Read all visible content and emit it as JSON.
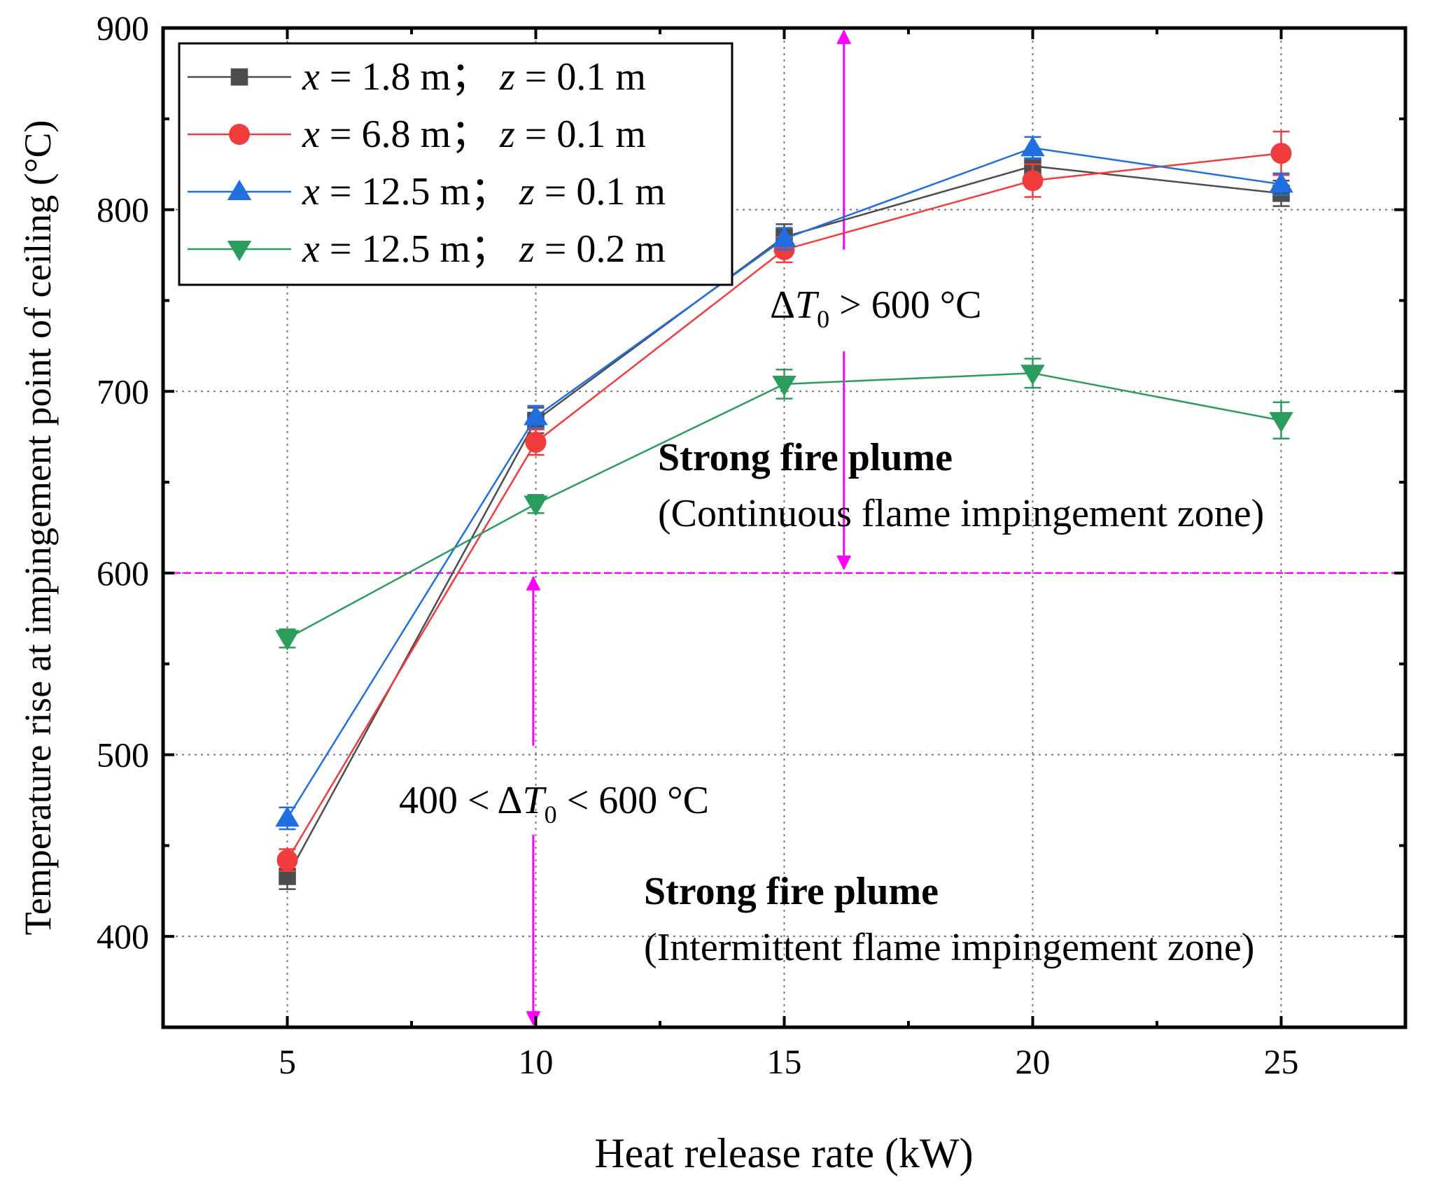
{
  "chart_data": {
    "type": "line",
    "title": "",
    "xlabel": "Heat release rate (kW)",
    "ylabel": "Temperature rise at impingement point of ceiling (°C)",
    "xlim": [
      2.5,
      27.5
    ],
    "ylim": [
      350,
      900
    ],
    "xticks": [
      5,
      10,
      15,
      20,
      25
    ],
    "yticks": [
      400,
      500,
      600,
      700,
      800,
      900
    ],
    "x": [
      5,
      10,
      15,
      20,
      25
    ],
    "grid": true,
    "legend_position": "top-left",
    "series": [
      {
        "name": "x = 1.8 m； z = 0.1 m",
        "legend": {
          "x": "1.8",
          "z": "0.1"
        },
        "color": "#4d4d4d",
        "marker": "square",
        "values": [
          433,
          684,
          785,
          824,
          809
        ],
        "errors": [
          7,
          7,
          7,
          7,
          7
        ]
      },
      {
        "name": "x = 6.8 m； z = 0.1 m",
        "legend": {
          "x": "6.8",
          "z": "0.1"
        },
        "color": "#f03c3c",
        "marker": "circle",
        "values": [
          442,
          672,
          778,
          816,
          831
        ],
        "errors": [
          6,
          7,
          7,
          9,
          12
        ]
      },
      {
        "name": "x = 12.5 m； z = 0.1 m",
        "legend": {
          "x": "12.5",
          "z": "0.1"
        },
        "color": "#1f6fe0",
        "marker": "triangle-up",
        "values": [
          465,
          686,
          784,
          834,
          814
        ],
        "errors": [
          6,
          6,
          6,
          6,
          6
        ]
      },
      {
        "name": "x = 12.5 m； z = 0.2 m",
        "legend": {
          "x": "12.5",
          "z": "0.2"
        },
        "color": "#2a9d5c",
        "marker": "triangle-down",
        "values": [
          564,
          638,
          704,
          710,
          684
        ],
        "errors": [
          5,
          5,
          8,
          8,
          10
        ]
      }
    ],
    "threshold": {
      "value": 600,
      "color": "#ff00ff"
    },
    "annotations": {
      "upper_delta_prefix": "Δ",
      "upper_delta_var": "T",
      "upper_delta_sub": "0",
      "upper_delta_suffix": " > 600 °C",
      "lower_delta_prefix": "400 < Δ",
      "lower_delta_var": "T",
      "lower_delta_sub": "0",
      "lower_delta_suffix": " < 600 °C",
      "upper_zone_title": "Strong fire plume",
      "upper_zone_subtitle": "(Continuous flame impingement zone)",
      "lower_zone_title": "Strong fire plume",
      "lower_zone_subtitle": "(Intermittent flame impingement zone)"
    },
    "legend_labels": {
      "x_var": "x",
      "z_var": "z",
      "eq": " = ",
      "unit": " m",
      "sep": "；"
    }
  }
}
